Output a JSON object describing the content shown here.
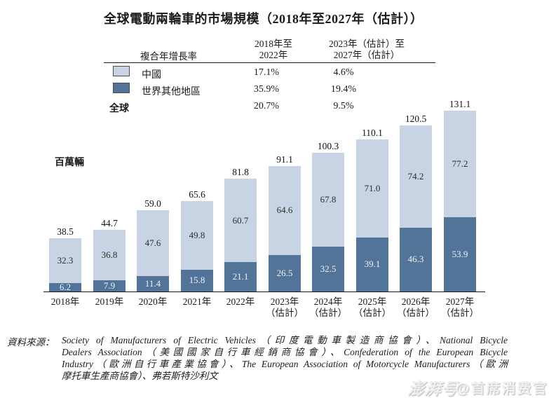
{
  "title": "全球電動兩輪車的市場規模（2018年至2027年（估計））",
  "unit_label": "百萬輛",
  "legend": {
    "header_label": "複合年增長率",
    "col1": {
      "line1": "2018年至",
      "line2": "2022年"
    },
    "col2": {
      "line1": "2023年（估計）至",
      "line2": "2027年（估計）"
    },
    "rows": [
      {
        "label": "中國",
        "cagr_2018_2022": "17.1%",
        "cagr_2023_2027": "4.6%"
      },
      {
        "label": "世界其他地區",
        "cagr_2018_2022": "35.9%",
        "cagr_2023_2027": "19.4%"
      },
      {
        "label": "全球",
        "cagr_2018_2022": "20.7%",
        "cagr_2023_2027": "9.5%"
      }
    ]
  },
  "chart_data": {
    "type": "bar",
    "stacked": true,
    "title": "全球電動兩輪車的市場規模（2018年至2027年（估計））",
    "ylabel": "百萬輛",
    "ylim": [
      0,
      140
    ],
    "grid": false,
    "legend_position": "top-table",
    "x": [
      {
        "label": "2018年",
        "sub": ""
      },
      {
        "label": "2019年",
        "sub": ""
      },
      {
        "label": "2020年",
        "sub": ""
      },
      {
        "label": "2021年",
        "sub": ""
      },
      {
        "label": "2022年",
        "sub": ""
      },
      {
        "label": "2023年",
        "sub": "（估計）"
      },
      {
        "label": "2024年",
        "sub": "（估計）"
      },
      {
        "label": "2025年",
        "sub": "（估計）"
      },
      {
        "label": "2026年",
        "sub": "（估計）"
      },
      {
        "label": "2027年",
        "sub": "（估計）"
      }
    ],
    "series": [
      {
        "name": "中國",
        "color": "#c8d3e3",
        "values": [
          32.3,
          36.8,
          47.6,
          49.8,
          60.7,
          64.6,
          67.8,
          71.0,
          74.2,
          77.2
        ],
        "values_display": [
          "32.3",
          "36.8",
          "47.6",
          "49.8",
          "60.7",
          "64.6",
          "67.8",
          "71.0",
          "74.2",
          "77.2"
        ]
      },
      {
        "name": "世界其他地區",
        "color": "#527499",
        "values": [
          6.2,
          7.9,
          11.4,
          15.8,
          21.1,
          26.5,
          32.5,
          39.1,
          46.3,
          53.9
        ],
        "values_display": [
          "6.2",
          "7.9",
          "11.4",
          "15.8",
          "21.1",
          "26.5",
          "32.5",
          "39.1",
          "46.3",
          "53.9"
        ]
      }
    ],
    "totals": [
      38.5,
      44.7,
      59.0,
      65.6,
      81.8,
      91.1,
      100.3,
      110.1,
      120.5,
      131.1
    ],
    "totals_display": [
      "38.5",
      "44.7",
      "59.0",
      "65.6",
      "81.8",
      "91.1",
      "100.3",
      "110.1",
      "120.5",
      "131.1"
    ]
  },
  "source": {
    "label": "資料來源：",
    "lines": [
      "Society of Manufacturers of Electric Vehicles（印度電動車製造商協會）、National Bicycle",
      "Dealers Association（美國國家自行車經銷商協會）、Confederation of the European Bicycle",
      "Industry（歐洲自行車產業協會）、The European Association of Motorcycle Manufacturers（歐洲",
      "摩托車生產商協會）、弗若斯特沙利文"
    ]
  },
  "watermark": {
    "platform": "澎湃号",
    "account": "@首席消费官"
  },
  "colors": {
    "china": "#c8d3e3",
    "rest_of_world": "#527499",
    "axis": "#161616",
    "text": "#1b1b1b"
  }
}
